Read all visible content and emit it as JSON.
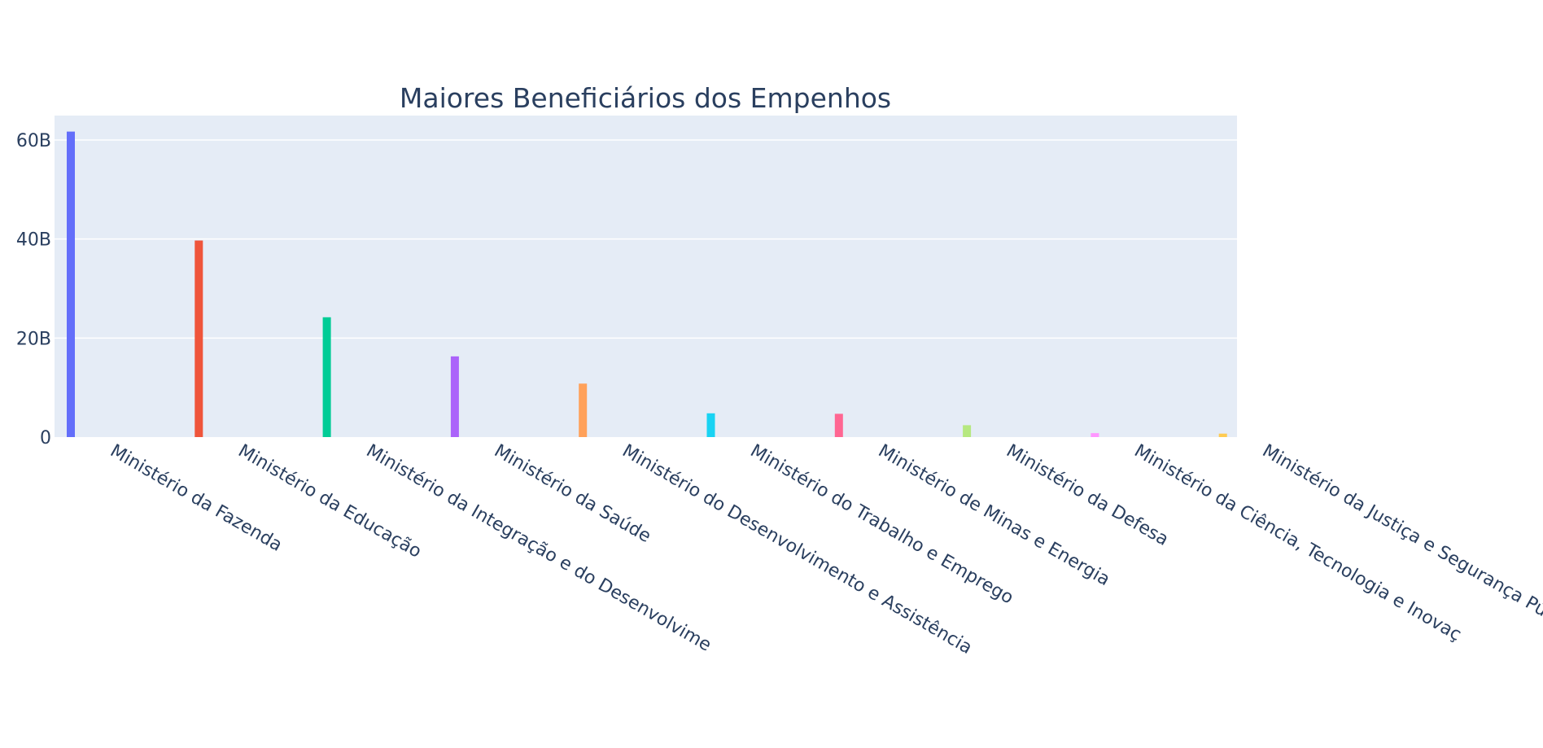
{
  "chart_data": {
    "type": "bar",
    "title": "Maiores Beneficiários dos Empenhos",
    "xlabel": "",
    "ylabel": "",
    "ylim": [
      0,
      65000000000
    ],
    "yticks": [
      0,
      20000000000,
      40000000000,
      60000000000
    ],
    "ytick_labels": [
      "0",
      "20B",
      "40B",
      "60B"
    ],
    "grid": true,
    "legend": "none",
    "categories": [
      "Ministério da Fazenda",
      "Ministério da Educação",
      "Ministério da Integração e do Desenvolvime",
      "Ministério da Saúde",
      "Ministério do Desenvolvimento e Assistência",
      "Ministério do Trabalho e Emprego",
      "Ministério de Minas e Energia",
      "Ministério da Defesa",
      "Ministério da Ciência, Tecnologia e Inovaç",
      "Ministério da Justiça e Segurança Pública"
    ],
    "values": [
      61700000000,
      39700000000,
      24200000000,
      16300000000,
      10800000000,
      4800000000,
      4700000000,
      2400000000,
      800000000,
      700000000
    ],
    "colors": [
      "#636efa",
      "#EF553B",
      "#00cc96",
      "#ab63fa",
      "#FFA15A",
      "#19d3f3",
      "#FF6692",
      "#B6E880",
      "#FF97FF",
      "#FECB52"
    ],
    "plot_background": "#e5ecf6",
    "gridline_color": "#ffffff",
    "text_color": "#2a3f5f"
  }
}
